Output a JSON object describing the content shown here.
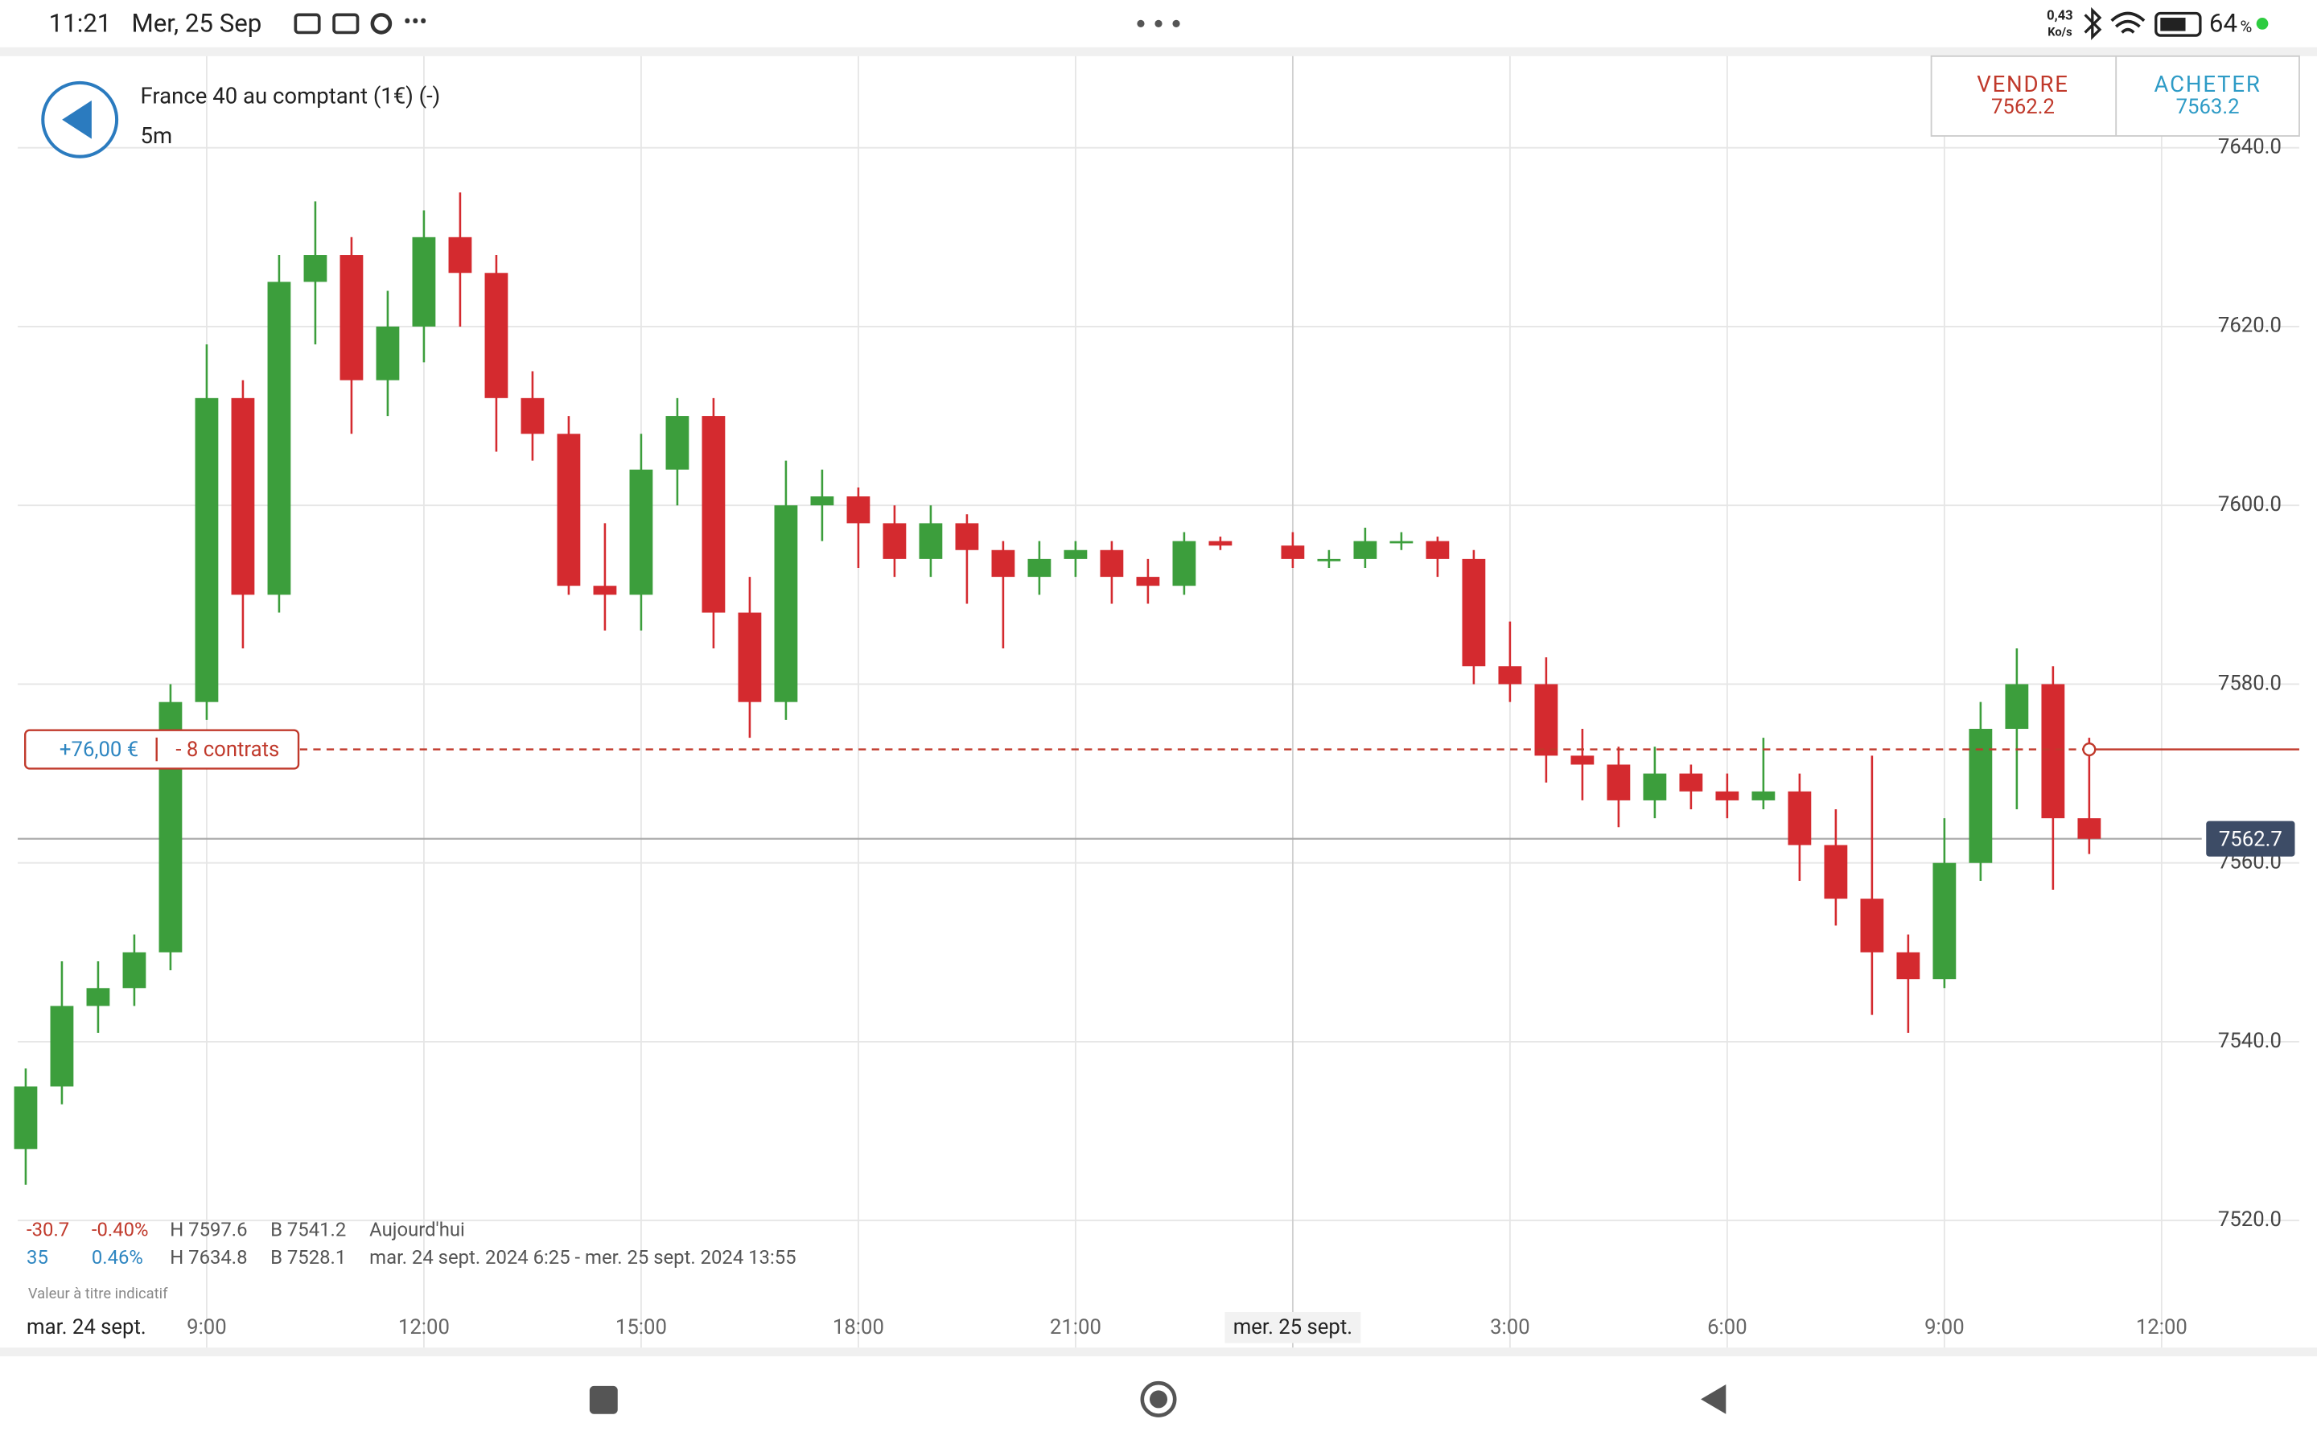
{
  "status_bar": {
    "time": "11:21",
    "date": "Mer, 25 Sep",
    "speed": "0,43",
    "speed_unit": "Ko/s",
    "battery": "64",
    "battery_unit": "%"
  },
  "header": {
    "instrument": "France 40 au comptant (1€) (-)",
    "interval": "5m",
    "sell_label": "VENDRE",
    "sell_price": "7562.2",
    "buy_label": "ACHETER",
    "buy_price": "7563.2"
  },
  "stats": {
    "rows": [
      [
        "-30.7",
        "-0.40%",
        "H 7597.6",
        "B 7541.2",
        "Aujourd'hui"
      ],
      [
        "35",
        "0.46%",
        "H 7634.8",
        "B 7528.1",
        "mar. 24 sept. 2024 6:25 - mer. 25 sept. 2024 13:55"
      ]
    ],
    "note": "Valeur à titre indicatif"
  },
  "chart_data": {
    "type": "candlestick",
    "up_color": "#3c9e3c",
    "down_color": "#d42a2f",
    "x": [
      6.5,
      7,
      7.5,
      8,
      8.5,
      9,
      9.5,
      10,
      10.5,
      11,
      11.5,
      12,
      12.5,
      13,
      13.5,
      14,
      14.5,
      15,
      15.5,
      16,
      16.5,
      17,
      17.5,
      18,
      18.5,
      19,
      19.5,
      20,
      20.5,
      21,
      21.5,
      22,
      22.5,
      23,
      24,
      24.5,
      25,
      25.5,
      26,
      26.5,
      27,
      27.5,
      28,
      28.5,
      29,
      29.5,
      30,
      30.5,
      31,
      31.5,
      32,
      32.5,
      33,
      33.5,
      34,
      34.5,
      35
    ],
    "open": [
      7528,
      7535,
      7544,
      7546,
      7550,
      7578,
      7612,
      7590,
      7625,
      7628,
      7614,
      7620,
      7630,
      7626,
      7612,
      7608,
      7591,
      7590,
      7604,
      7610,
      7588,
      7578,
      7600,
      7601,
      7598,
      7594,
      7598,
      7595,
      7592,
      7594,
      7595,
      7592,
      7591,
      7596,
      7595.5,
      7594,
      7594,
      7596,
      7596,
      7594,
      7582,
      7580,
      7572,
      7571,
      7567,
      7570,
      7568,
      7567,
      7568,
      7562,
      7556,
      7550,
      7547,
      7560,
      7575,
      7580,
      7565
    ],
    "high": [
      7537,
      7549,
      7549,
      7552,
      7580,
      7618,
      7614,
      7628,
      7634,
      7630,
      7624,
      7633,
      7635,
      7628,
      7615,
      7610,
      7598,
      7608,
      7612,
      7612,
      7592,
      7605,
      7604,
      7602,
      7600,
      7600,
      7599,
      7596,
      7596,
      7596,
      7596,
      7594,
      7597,
      7596.5,
      7597,
      7595,
      7597.5,
      7597,
      7596.5,
      7595,
      7587,
      7583,
      7575,
      7573,
      7573,
      7571,
      7570,
      7574,
      7570,
      7566,
      7572,
      7552,
      7565,
      7578,
      7584,
      7582,
      7574
    ],
    "low": [
      7524,
      7533,
      7541,
      7544,
      7548,
      7576,
      7584,
      7588,
      7618,
      7608,
      7610,
      7616,
      7620,
      7606,
      7605,
      7590,
      7586,
      7586,
      7600,
      7584,
      7574,
      7576,
      7596,
      7593,
      7592,
      7592,
      7589,
      7584,
      7590,
      7592,
      7589,
      7589,
      7590,
      7595,
      7593,
      7593,
      7593,
      7595,
      7592,
      7580,
      7578,
      7569,
      7567,
      7564,
      7565,
      7566,
      7565,
      7566,
      7558,
      7553,
      7543,
      7541,
      7546,
      7558,
      7566,
      7557,
      7561
    ],
    "close": [
      7535,
      7544,
      7546,
      7550,
      7578,
      7612,
      7590,
      7625,
      7628,
      7614,
      7620,
      7630,
      7626,
      7612,
      7608,
      7591,
      7590,
      7604,
      7610,
      7588,
      7578,
      7600,
      7601,
      7598,
      7594,
      7598,
      7595,
      7592,
      7594,
      7595,
      7592,
      7591,
      7596,
      7595.5,
      7594,
      7594,
      7596,
      7596,
      7594,
      7582,
      7580,
      7572,
      7571,
      7567,
      7570,
      7568,
      7567,
      7568,
      7562,
      7556,
      7550,
      7547,
      7560,
      7575,
      7580,
      7565,
      7562.7
    ],
    "xlim": [
      6.39,
      36.35
    ],
    "xticks": [
      {
        "value": 9,
        "label": "9:00"
      },
      {
        "value": 12,
        "label": "12:00"
      },
      {
        "value": 15,
        "label": "15:00"
      },
      {
        "value": 18,
        "label": "18:00"
      },
      {
        "value": 21,
        "label": "21:00"
      },
      {
        "value": 24,
        "label": "mer. 25 sept."
      },
      {
        "value": 27,
        "label": "3:00"
      },
      {
        "value": 30,
        "label": "6:00"
      },
      {
        "value": 33,
        "label": "9:00"
      },
      {
        "value": 36,
        "label": "12:00"
      }
    ],
    "start_label": "mar. 24 sept.",
    "ylim": [
      7511,
      7650
    ],
    "yticks": [
      {
        "value": 7520,
        "label": "7520.0"
      },
      {
        "value": 7540,
        "label": "7540.0"
      },
      {
        "value": 7560,
        "label": "7560.0"
      },
      {
        "value": 7580,
        "label": "7580.0"
      },
      {
        "value": 7600,
        "label": "7600.0"
      },
      {
        "value": 7620,
        "label": "7620.0"
      },
      {
        "value": 7640,
        "label": "7640.0"
      }
    ],
    "grid": true,
    "current_price": 7562.7,
    "position_price": 7572.7,
    "position_pnl": "+76,00 €",
    "position_size": "- 8 contrats"
  }
}
